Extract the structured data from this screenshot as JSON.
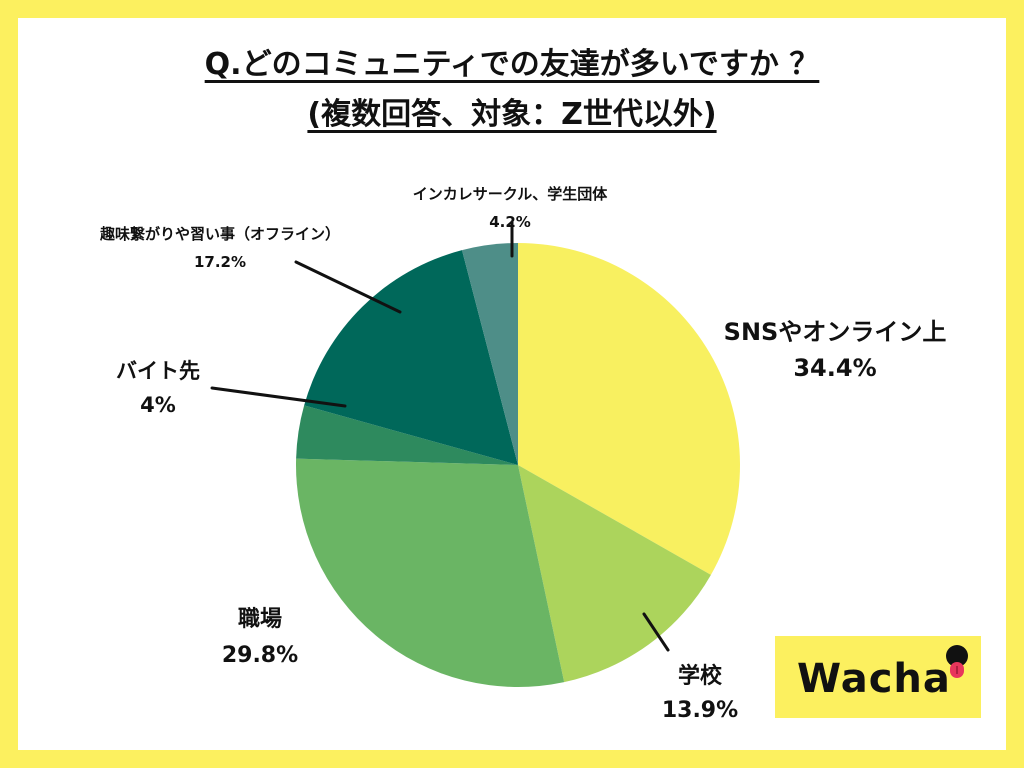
{
  "title": {
    "line1": "Q.どのコミュニティでの友達が多いですか ？",
    "line2": "(複数回答、対象：Z世代以外)"
  },
  "logo": {
    "text": "Wacha"
  },
  "chart_data": {
    "type": "pie",
    "start_angle_deg": 0,
    "direction": "clockwise",
    "slices": [
      {
        "label": "SNSやオンライン上",
        "value": 34.4,
        "display": "34.4%",
        "color": "#f8f060"
      },
      {
        "label": "学校",
        "value": 13.9,
        "display": "13.9%",
        "color": "#acd45c"
      },
      {
        "label": "職場",
        "value": 29.8,
        "display": "29.8%",
        "color": "#6ab564"
      },
      {
        "label": "バイト先",
        "value": 4,
        "display": "4%",
        "color": "#2e8a5e"
      },
      {
        "label": "趣味繋がりや習い事（オフライン）",
        "value": 17.2,
        "display": "17.2%",
        "color": "#00685a"
      },
      {
        "label": "インカレサークル、学生団体",
        "value": 4.2,
        "display": "4.2%",
        "color": "#4e8e88"
      }
    ]
  }
}
